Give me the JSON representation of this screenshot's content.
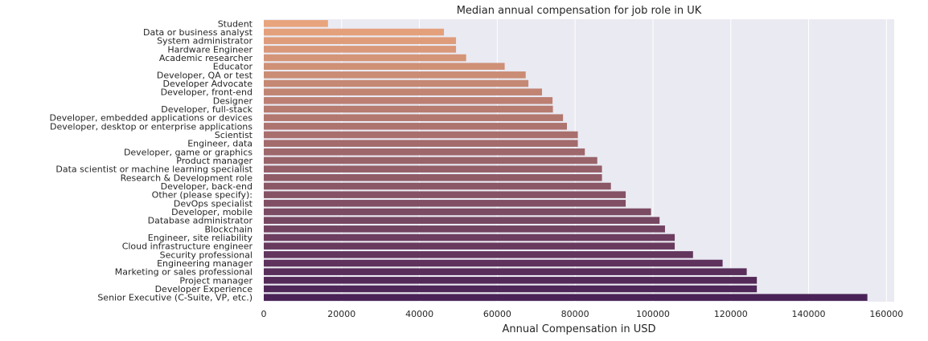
{
  "chart_data": {
    "type": "bar",
    "orientation": "horizontal",
    "title": "Median annual compensation for job role in UK",
    "xlabel": "Annual Compensation in USD",
    "ylabel": "",
    "xlim": [
      0,
      162000
    ],
    "xticks": [
      0,
      20000,
      40000,
      60000,
      80000,
      100000,
      120000,
      140000,
      160000
    ],
    "grid": true,
    "background": "#eaeaf2",
    "palette": "rocket_r",
    "color_start": "#e8a47c",
    "color_end": "#4a2257",
    "categories": [
      "Student",
      "Data or business analyst",
      "System administrator",
      "Hardware Engineer",
      "Academic researcher",
      "Educator",
      "Developer, QA or test",
      "Developer Advocate",
      "Developer, front-end",
      "Designer",
      "Developer, full-stack",
      "Developer, embedded applications or devices",
      "Developer, desktop or enterprise applications",
      "Scientist",
      "Engineer, data",
      "Developer, game or graphics",
      "Product manager",
      "Data scientist or machine learning specialist",
      "Research & Development role",
      "Developer, back-end",
      "Other (please specify):",
      "DevOps specialist",
      "Developer, mobile",
      "Database administrator",
      "Blockchain",
      "Engineer, site reliability",
      "Cloud infrastructure engineer",
      "Security professional",
      "Engineering manager",
      "Marketing or sales professional",
      "Project manager",
      "Developer Experience",
      "Senior Executive (C-Suite, VP, etc.)"
    ],
    "values": [
      16500,
      46300,
      49400,
      49400,
      52000,
      61900,
      67300,
      68000,
      71500,
      74200,
      74300,
      76900,
      77900,
      80700,
      80700,
      82500,
      85700,
      86900,
      86900,
      89200,
      93000,
      93000,
      99500,
      101700,
      103100,
      105600,
      105600,
      110300,
      117900,
      124100,
      126700,
      126700,
      155100
    ]
  }
}
